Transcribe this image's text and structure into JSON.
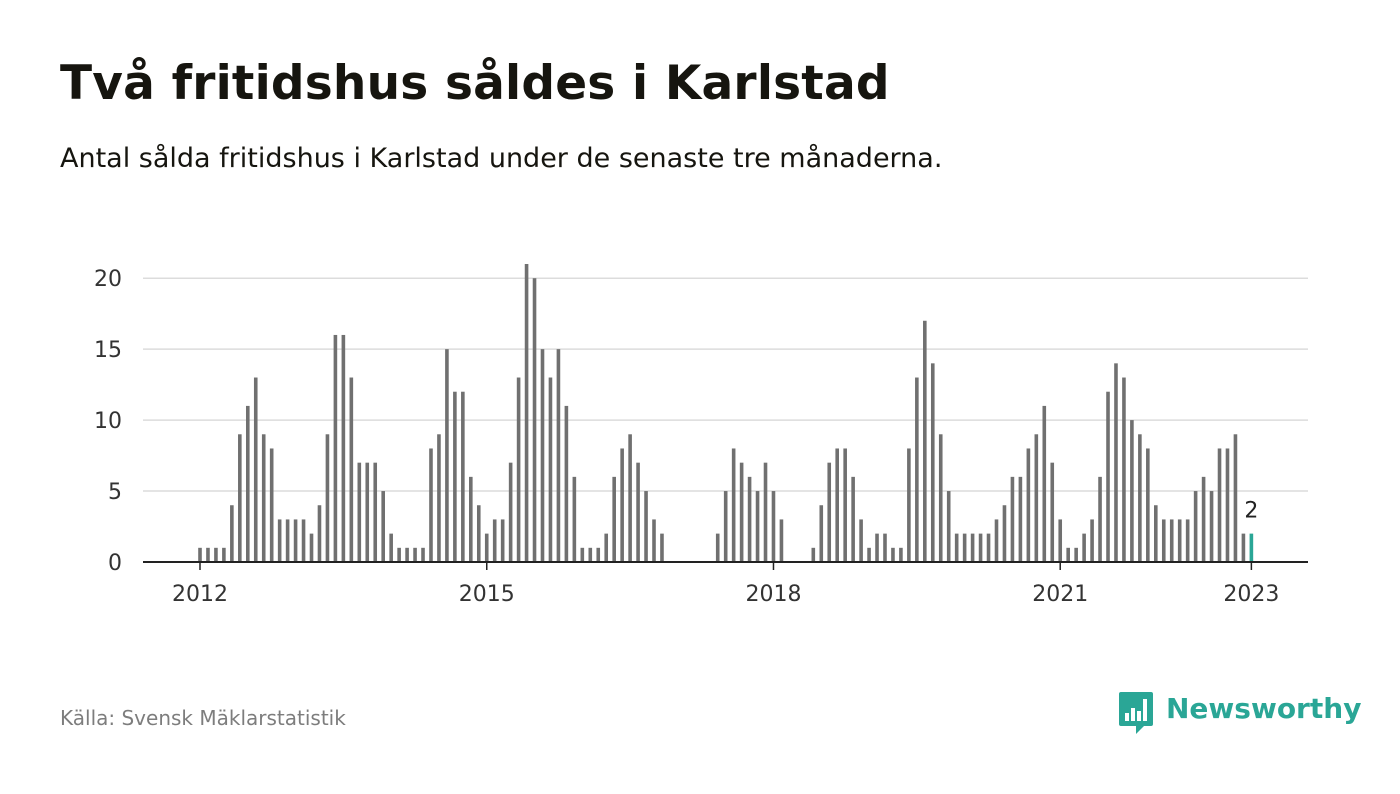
{
  "header": {
    "title": "Två fritidshus såldes i Karlstad",
    "subtitle": "Antal sålda fritidshus i Karlstad under de senaste tre månaderna."
  },
  "footer": {
    "source": "Källa: Svensk Mäklarstatistik",
    "brand": "Newsworthy",
    "logo_icon": "bar-chart-speech-bubble-icon"
  },
  "colors": {
    "bar": "#707070",
    "highlight": "#2aa696",
    "grid": "#dcdcdc",
    "axis": "#222222",
    "text": "#16150f",
    "muted": "#7d7d7d"
  },
  "chart_data": {
    "type": "bar",
    "title": "Två fritidshus såldes i Karlstad",
    "subtitle": "Antal sålda fritidshus i Karlstad under de senaste tre månaderna.",
    "xlabel": "",
    "ylabel": "",
    "ylim": [
      0,
      21
    ],
    "yticks": [
      0,
      5,
      10,
      15,
      20
    ],
    "x_tick_labels": [
      "2012",
      "2015",
      "2018",
      "2021",
      "2023"
    ],
    "x_tick_months": [
      "2012-01",
      "2015-01",
      "2018-01",
      "2021-01",
      "2023-01"
    ],
    "grid": true,
    "legend": "none",
    "series": [
      {
        "x": [
          "2012-01",
          "2012-02",
          "2012-03",
          "2012-04",
          "2012-05",
          "2012-06",
          "2012-07",
          "2012-08",
          "2012-09",
          "2012-10",
          "2012-11",
          "2012-12",
          "2013-01",
          "2013-02",
          "2013-03",
          "2013-04",
          "2013-05",
          "2013-06",
          "2013-07",
          "2013-08",
          "2013-09",
          "2013-10",
          "2013-11",
          "2013-12",
          "2014-01",
          "2014-02",
          "2014-03",
          "2014-04",
          "2014-05",
          "2014-06",
          "2014-07",
          "2014-08",
          "2014-09",
          "2014-10",
          "2014-11",
          "2014-12",
          "2015-01",
          "2015-02",
          "2015-03",
          "2015-04",
          "2015-05",
          "2015-06",
          "2015-07",
          "2015-08",
          "2015-09",
          "2015-10",
          "2015-11",
          "2015-12",
          "2016-01",
          "2016-02",
          "2016-03",
          "2016-04",
          "2016-05",
          "2016-06",
          "2016-07",
          "2016-08",
          "2016-09",
          "2016-10",
          "2016-11",
          "2016-12",
          "2017-01",
          "2017-02",
          "2017-03",
          "2017-04",
          "2017-05",
          "2017-06",
          "2017-07",
          "2017-08",
          "2017-09",
          "2017-10",
          "2017-11",
          "2017-12",
          "2018-01",
          "2018-02",
          "2018-03",
          "2018-04",
          "2018-05",
          "2018-06",
          "2018-07",
          "2018-08",
          "2018-09",
          "2018-10",
          "2018-11",
          "2018-12",
          "2019-01",
          "2019-02",
          "2019-03",
          "2019-04",
          "2019-05",
          "2019-06",
          "2019-07",
          "2019-08",
          "2019-09",
          "2019-10",
          "2019-11",
          "2019-12",
          "2020-01",
          "2020-02",
          "2020-03",
          "2020-04",
          "2020-05",
          "2020-06",
          "2020-07",
          "2020-08",
          "2020-09",
          "2020-10",
          "2020-11",
          "2020-12",
          "2021-01",
          "2021-02",
          "2021-03",
          "2021-04",
          "2021-05",
          "2021-06",
          "2021-07",
          "2021-08",
          "2021-09",
          "2021-10",
          "2021-11",
          "2021-12",
          "2022-01",
          "2022-02",
          "2022-03",
          "2022-04",
          "2022-05",
          "2022-06",
          "2022-07",
          "2022-08",
          "2022-09",
          "2022-10",
          "2022-11",
          "2022-12",
          "2023-01"
        ],
        "values": [
          1,
          1,
          1,
          1,
          4,
          9,
          11,
          13,
          9,
          8,
          3,
          3,
          3,
          3,
          2,
          4,
          9,
          16,
          16,
          13,
          7,
          7,
          7,
          5,
          2,
          1,
          1,
          1,
          1,
          8,
          9,
          15,
          12,
          12,
          6,
          4,
          2,
          3,
          3,
          7,
          13,
          21,
          20,
          15,
          13,
          15,
          11,
          6,
          1,
          1,
          1,
          2,
          6,
          8,
          9,
          7,
          5,
          3,
          2,
          0,
          0,
          0,
          0,
          0,
          0,
          2,
          5,
          8,
          7,
          6,
          5,
          7,
          5,
          3,
          0,
          0,
          0,
          1,
          4,
          7,
          8,
          8,
          6,
          3,
          1,
          2,
          2,
          1,
          1,
          8,
          13,
          17,
          14,
          9,
          5,
          2,
          2,
          2,
          2,
          2,
          3,
          4,
          6,
          6,
          8,
          9,
          11,
          7,
          3,
          1,
          1,
          2,
          3,
          6,
          12,
          14,
          13,
          10,
          9,
          8,
          4,
          3,
          3,
          3,
          3,
          5,
          6,
          5,
          8,
          8,
          9,
          2,
          2
        ],
        "highlight_index": 132,
        "highlight_label": "2"
      }
    ]
  }
}
